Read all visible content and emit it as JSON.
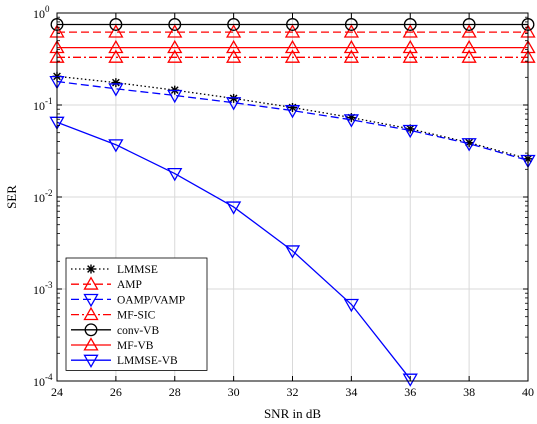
{
  "chart_data": {
    "type": "line",
    "title": "",
    "xlabel": "SNR in dB",
    "ylabel": "SER",
    "x_scale": "linear",
    "y_scale": "log",
    "xlim": [
      24,
      40
    ],
    "ylim": [
      0.0001,
      1
    ],
    "grid": true,
    "legend_position": "bottom-left",
    "x_ticks": [
      24,
      26,
      28,
      30,
      32,
      34,
      36,
      38,
      40
    ],
    "y_ticks": [
      {
        "value": 0.0001,
        "base": "10",
        "exp": "-4"
      },
      {
        "value": 0.001,
        "base": "10",
        "exp": "-3"
      },
      {
        "value": 0.01,
        "base": "10",
        "exp": "-2"
      },
      {
        "value": 0.1,
        "base": "10",
        "exp": "-1"
      },
      {
        "value": 1,
        "base": "10",
        "exp": "0"
      }
    ],
    "series": [
      {
        "name": "LMMSE",
        "color": "#000000",
        "dash": "dotted",
        "marker": "asterisk",
        "x": [
          24,
          26,
          28,
          30,
          32,
          34,
          36,
          38,
          40
        ],
        "y": [
          0.205,
          0.175,
          0.145,
          0.118,
          0.094,
          0.073,
          0.055,
          0.039,
          0.026
        ]
      },
      {
        "name": "AMP",
        "color": "#ff0000",
        "dash": "dashed",
        "marker": "triangle-up",
        "x": [
          24,
          26,
          28,
          30,
          32,
          34,
          36,
          38,
          40
        ],
        "y": [
          0.62,
          0.62,
          0.62,
          0.62,
          0.62,
          0.62,
          0.62,
          0.62,
          0.62
        ]
      },
      {
        "name": "OAMP/VAMP",
        "color": "#0000ff",
        "dash": "dashed",
        "marker": "triangle-down",
        "x": [
          24,
          26,
          28,
          30,
          32,
          34,
          36,
          38,
          40
        ],
        "y": [
          0.18,
          0.15,
          0.127,
          0.106,
          0.087,
          0.069,
          0.053,
          0.038,
          0.025
        ]
      },
      {
        "name": "MF-SIC",
        "color": "#ff0000",
        "dash": "dashdot",
        "marker": "triangle-up",
        "x": [
          24,
          26,
          28,
          30,
          32,
          34,
          36,
          38,
          40
        ],
        "y": [
          0.33,
          0.33,
          0.33,
          0.33,
          0.33,
          0.33,
          0.33,
          0.33,
          0.33
        ]
      },
      {
        "name": "conv-VB",
        "color": "#000000",
        "dash": "solid",
        "marker": "circle",
        "x": [
          24,
          26,
          28,
          30,
          32,
          34,
          36,
          38,
          40
        ],
        "y": [
          0.75,
          0.75,
          0.75,
          0.75,
          0.75,
          0.75,
          0.75,
          0.75,
          0.75
        ]
      },
      {
        "name": "MF-VB",
        "color": "#ff0000",
        "dash": "solid",
        "marker": "triangle-up",
        "x": [
          24,
          26,
          28,
          30,
          32,
          34,
          36,
          38,
          40
        ],
        "y": [
          0.42,
          0.42,
          0.42,
          0.42,
          0.42,
          0.42,
          0.42,
          0.42,
          0.42
        ]
      },
      {
        "name": "LMMSE-VB",
        "color": "#0000ff",
        "dash": "solid",
        "marker": "triangle-down",
        "x": [
          24,
          26,
          28,
          30,
          32,
          34,
          36
        ],
        "y": [
          0.065,
          0.037,
          0.018,
          0.0078,
          0.0026,
          0.00068,
          0.000105
        ]
      }
    ]
  }
}
